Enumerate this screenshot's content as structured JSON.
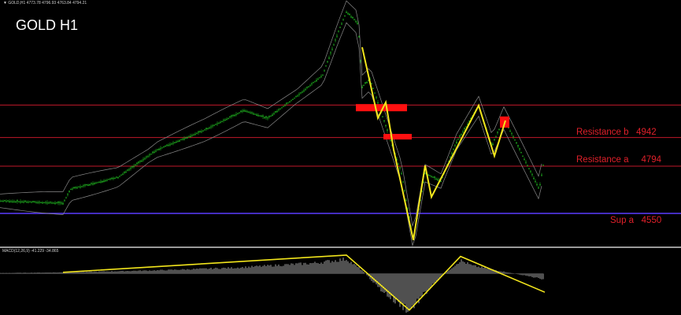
{
  "header": {
    "symbol_info": "▼ GOLD,H1  4773.78 4796.93 4763.84 4794.21",
    "title": "GOLD H1"
  },
  "colors": {
    "background": "#000000",
    "candles": "#22c322",
    "bands": "#8a8a8a",
    "zigzag": "#f2e51c",
    "resistance": "#c0182a",
    "support": "#5a3cff",
    "zone": "#ff1010",
    "histogram": "#a0a0a0"
  },
  "chart_data": [
    {
      "type": "line",
      "title": "GOLD H1",
      "ylim": [
        4379,
        5653
      ],
      "x": [
        0,
        80,
        90,
        150,
        200,
        260,
        310,
        340,
        380,
        410,
        430,
        440,
        455,
        460,
        470,
        490,
        510,
        525,
        540,
        560,
        580,
        608,
        625,
        640,
        660,
        685,
        690
      ],
      "price": [
        4615,
        4603,
        4676,
        4737,
        4880,
        4981,
        5083,
        5042,
        5165,
        5266,
        5490,
        5592,
        5531,
        5205,
        5246,
        5002,
        4758,
        4412,
        4758,
        4717,
        4920,
        5104,
        4900,
        5042,
        4880,
        4676,
        4798
      ],
      "levels": [
        {
          "label": "",
          "value": 5110,
          "kind": "resistance"
        },
        {
          "label": "Resistance b",
          "price_text": "4942",
          "value": 4942,
          "kind": "resistance"
        },
        {
          "label": "Resistance a",
          "price_text": "4794",
          "value": 4794,
          "kind": "resistance"
        },
        {
          "label": "Sup a",
          "price_text": "4550",
          "value": 4550,
          "kind": "support"
        }
      ],
      "zigzag": {
        "x": [
          460,
          480,
          490,
          500,
          525,
          540,
          548,
          608,
          628,
          642
        ],
        "price": [
          5409,
          5043,
          5124,
          4880,
          4412,
          4798,
          4635,
          5108,
          4847,
          5030
        ]
      },
      "zones": [
        {
          "x": [
            452,
            517
          ],
          "price": [
            5115,
            5078
          ]
        },
        {
          "x": [
            487,
            523
          ],
          "price": [
            4961,
            4932
          ]
        },
        {
          "x": [
            635,
            647
          ],
          "price": [
            5051,
            4993
          ]
        }
      ]
    },
    {
      "type": "bar",
      "label": "MACD(12,26,9) -41.229 -34.865",
      "ylim": [
        -60,
        35
      ],
      "x": [
        0,
        80,
        200,
        300,
        400,
        440,
        460,
        480,
        500,
        520,
        540,
        560,
        585,
        600,
        640,
        690
      ],
      "histogram": [
        1,
        2,
        5,
        9,
        16,
        22,
        5,
        -20,
        -40,
        -55,
        -30,
        -5,
        20,
        12,
        3,
        -8
      ],
      "signal_trend": {
        "x": [
          80,
          440,
          520,
          585,
          692
        ],
        "value": [
          2,
          28,
          -55,
          26,
          -28
        ]
      }
    }
  ]
}
